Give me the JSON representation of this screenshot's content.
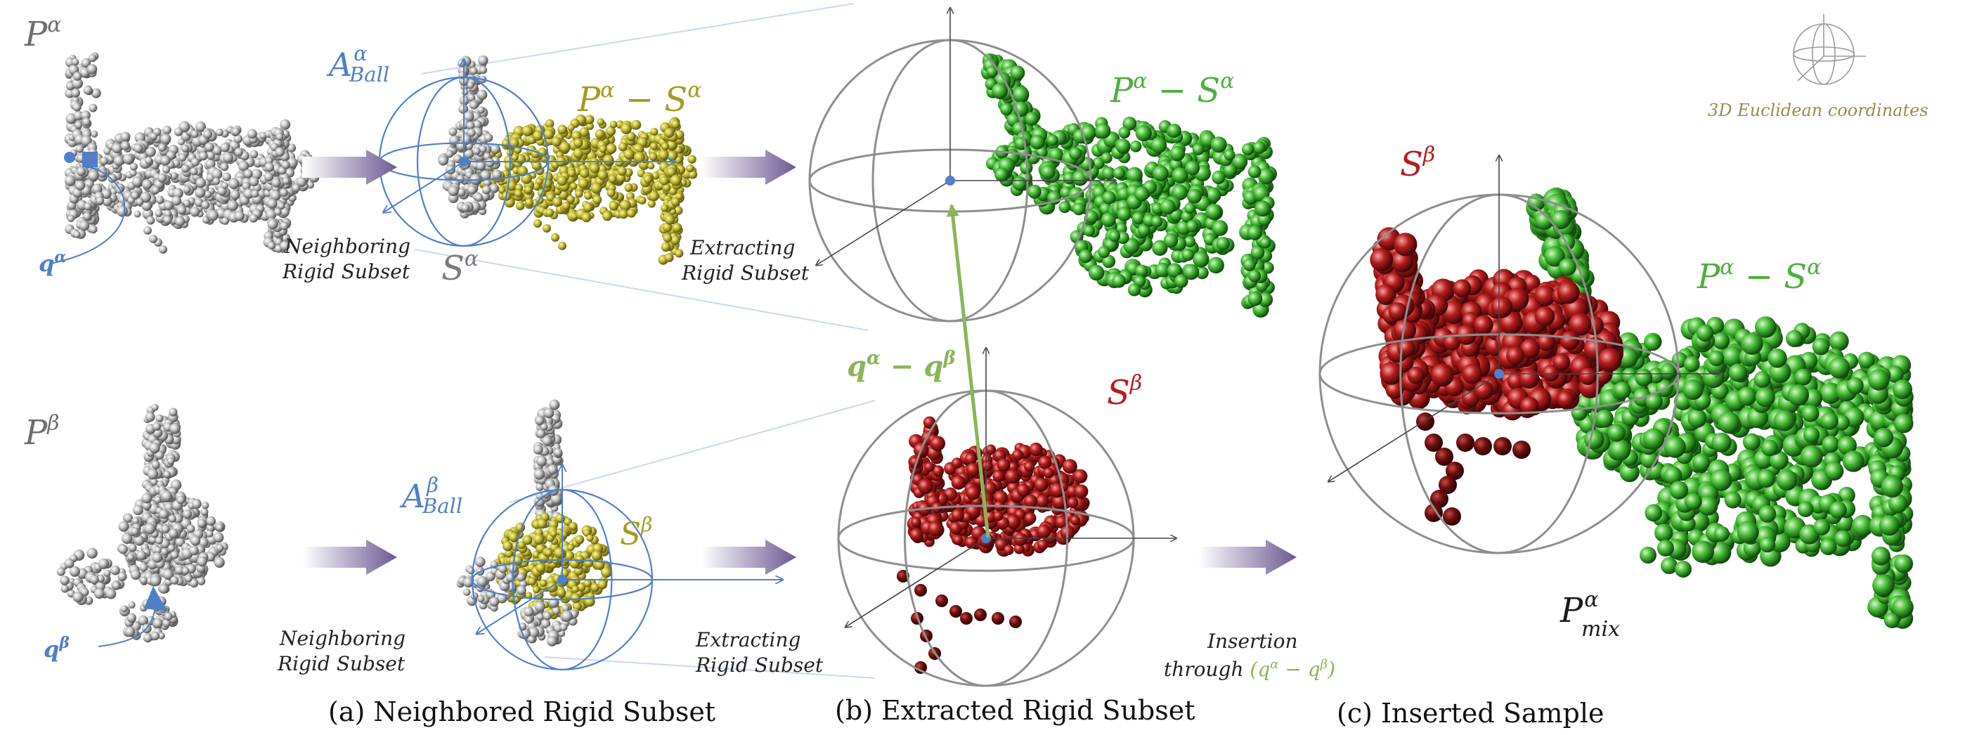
{
  "colors": {
    "gray_label": "#6e6e6e",
    "blue": "#4f7fc8",
    "olive": "#a89a20",
    "green": "#4caf3c",
    "red": "#b71c1c",
    "purple_arrow": "#6b5a92",
    "euclid_text": "#9b8a4e",
    "light_green": "#8ab55a"
  },
  "labels": {
    "p_alpha": {
      "base": "P",
      "sup": "α"
    },
    "p_beta": {
      "base": "P",
      "sup": "β"
    },
    "q_alpha": {
      "base": "q",
      "sup": "α"
    },
    "q_beta": {
      "base": "q",
      "sup": "β"
    },
    "a_ball_alpha": {
      "base": "A",
      "sup": "α",
      "sub": "Ball"
    },
    "a_ball_beta": {
      "base": "A",
      "sup": "β",
      "sub": "Ball"
    },
    "s_alpha": {
      "base": "S",
      "sup": "α"
    },
    "s_beta": {
      "base": "S",
      "sup": "β"
    },
    "p_minus_s": {
      "base1": "P",
      "sup1": "α",
      "op": " − ",
      "base2": "S",
      "sup2": "α"
    },
    "q_diff": {
      "base1": "q",
      "sup1": "α",
      "op": " − ",
      "base2": "q",
      "sup2": "β"
    },
    "p_mix": {
      "base": "P",
      "sup": "α",
      "sub": "mix"
    }
  },
  "notes": {
    "neighboring_line1": "Neighboring",
    "neighboring_line2": "Rigid Subset",
    "extracting_line1": "Extracting",
    "extracting_line2": "Rigid Subset",
    "insertion_line1": "Insertion",
    "insertion_line2_prefix": "through ",
    "insertion_expr": {
      "open": "(",
      "base1": "q",
      "sup1": "α",
      "op": " − ",
      "base2": "q",
      "sup2": "β",
      "close": ")"
    },
    "euclidean": "3D Euclidean coordinates"
  },
  "captions": {
    "a": "(a) Neighbored Rigid Subset",
    "b": "(b) Extracted Rigid Subset",
    "c": "(c) Inserted Sample"
  }
}
